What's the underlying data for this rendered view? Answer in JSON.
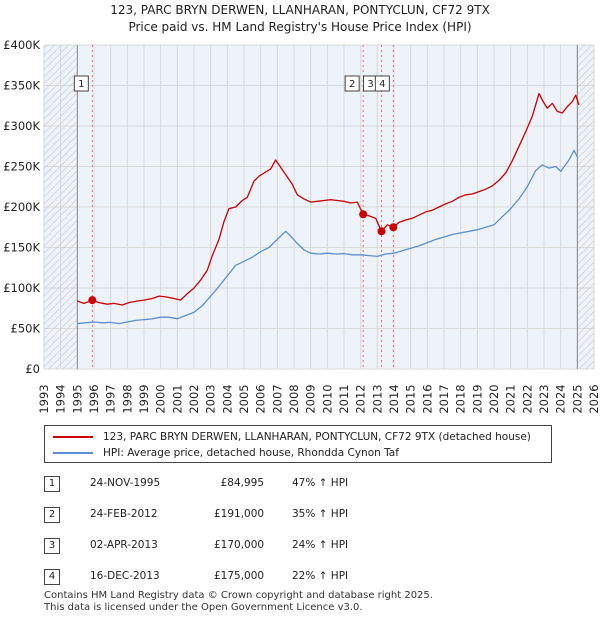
{
  "chart_data": {
    "type": "line",
    "title": "123, PARC BRYN DERWEN, LLANHARAN, PONTYCLUN, CF72 9TX",
    "subtitle": "Price paid vs. HM Land Registry's House Price Index (HPI)",
    "xlim": [
      1993,
      2026
    ],
    "ylim": [
      0,
      400000
    ],
    "x_ticks": [
      "1993",
      "1994",
      "1995",
      "1996",
      "1997",
      "1998",
      "1999",
      "2000",
      "2001",
      "2002",
      "2003",
      "2004",
      "2005",
      "2006",
      "2007",
      "2008",
      "2009",
      "2010",
      "2011",
      "2012",
      "2013",
      "2014",
      "2015",
      "2016",
      "2017",
      "2018",
      "2019",
      "2020",
      "2021",
      "2022",
      "2023",
      "2024",
      "2025",
      "2026"
    ],
    "y_ticks": [
      {
        "value": 0,
        "label": "£0"
      },
      {
        "value": 50000,
        "label": "£50K"
      },
      {
        "value": 100000,
        "label": "£100K"
      },
      {
        "value": 150000,
        "label": "£150K"
      },
      {
        "value": 200000,
        "label": "£200K"
      },
      {
        "value": 250000,
        "label": "£250K"
      },
      {
        "value": 300000,
        "label": "£300K"
      },
      {
        "value": 350000,
        "label": "£350K"
      },
      {
        "value": 400000,
        "label": "£400K"
      }
    ],
    "hatched_ranges": [
      [
        1993,
        1995.0
      ],
      [
        2025.0,
        2026
      ]
    ],
    "series": [
      {
        "name": "123, PARC BRYN DERWEN, LLANHARAN, PONTYCLUN, CF72 9TX (detached house)",
        "color": "#cc0000",
        "points": [
          [
            1995.0,
            84000
          ],
          [
            1995.4,
            81000
          ],
          [
            1995.9,
            84995
          ],
          [
            1996.3,
            82000
          ],
          [
            1996.8,
            80000
          ],
          [
            1997.2,
            81000
          ],
          [
            1997.7,
            79000
          ],
          [
            1998.1,
            82000
          ],
          [
            1998.6,
            84000
          ],
          [
            1999.0,
            85000
          ],
          [
            1999.5,
            87000
          ],
          [
            1999.9,
            90000
          ],
          [
            2000.3,
            89000
          ],
          [
            2000.8,
            87000
          ],
          [
            2001.2,
            85000
          ],
          [
            2001.6,
            93000
          ],
          [
            2002.0,
            100000
          ],
          [
            2002.4,
            110000
          ],
          [
            2002.8,
            122000
          ],
          [
            2003.1,
            140000
          ],
          [
            2003.5,
            160000
          ],
          [
            2003.8,
            182000
          ],
          [
            2004.1,
            198000
          ],
          [
            2004.5,
            200000
          ],
          [
            2004.9,
            208000
          ],
          [
            2005.2,
            212000
          ],
          [
            2005.6,
            232000
          ],
          [
            2005.9,
            238000
          ],
          [
            2006.2,
            242000
          ],
          [
            2006.6,
            247000
          ],
          [
            2006.9,
            258000
          ],
          [
            2007.1,
            252000
          ],
          [
            2007.5,
            240000
          ],
          [
            2007.9,
            228000
          ],
          [
            2008.2,
            215000
          ],
          [
            2008.6,
            210000
          ],
          [
            2009.0,
            206000
          ],
          [
            2009.4,
            207000
          ],
          [
            2009.8,
            208000
          ],
          [
            2010.2,
            209000
          ],
          [
            2010.6,
            208000
          ],
          [
            2011.0,
            207000
          ],
          [
            2011.4,
            205000
          ],
          [
            2011.8,
            206000
          ],
          [
            2012.15,
            191000
          ],
          [
            2012.5,
            189000
          ],
          [
            2012.9,
            186000
          ],
          [
            2013.25,
            170000
          ],
          [
            2013.6,
            178000
          ],
          [
            2013.96,
            175000
          ],
          [
            2014.3,
            181000
          ],
          [
            2014.7,
            184000
          ],
          [
            2015.1,
            186000
          ],
          [
            2015.5,
            190000
          ],
          [
            2015.9,
            194000
          ],
          [
            2016.3,
            196000
          ],
          [
            2016.7,
            200000
          ],
          [
            2017.1,
            204000
          ],
          [
            2017.5,
            207000
          ],
          [
            2017.9,
            212000
          ],
          [
            2018.3,
            215000
          ],
          [
            2018.7,
            216000
          ],
          [
            2019.1,
            219000
          ],
          [
            2019.5,
            222000
          ],
          [
            2019.9,
            226000
          ],
          [
            2020.3,
            233000
          ],
          [
            2020.7,
            242000
          ],
          [
            2021.1,
            257000
          ],
          [
            2021.5,
            275000
          ],
          [
            2021.9,
            293000
          ],
          [
            2022.3,
            312000
          ],
          [
            2022.7,
            340000
          ],
          [
            2022.9,
            332000
          ],
          [
            2023.2,
            322000
          ],
          [
            2023.5,
            328000
          ],
          [
            2023.8,
            318000
          ],
          [
            2024.1,
            316000
          ],
          [
            2024.4,
            324000
          ],
          [
            2024.7,
            330000
          ],
          [
            2024.9,
            338000
          ],
          [
            2025.1,
            326000
          ]
        ]
      },
      {
        "name": "HPI: Average price, detached house, Rhondda Cynon Taf",
        "color": "#5b8fd0",
        "points": [
          [
            1995.0,
            56000
          ],
          [
            1995.5,
            57000
          ],
          [
            1996.0,
            58000
          ],
          [
            1996.5,
            57000
          ],
          [
            1997.0,
            57500
          ],
          [
            1997.5,
            56000
          ],
          [
            1998.0,
            58000
          ],
          [
            1998.5,
            60000
          ],
          [
            1999.0,
            61000
          ],
          [
            1999.5,
            62000
          ],
          [
            2000.0,
            64000
          ],
          [
            2000.5,
            64000
          ],
          [
            2001.0,
            62000
          ],
          [
            2001.5,
            66000
          ],
          [
            2002.0,
            70000
          ],
          [
            2002.5,
            78000
          ],
          [
            2003.0,
            90000
          ],
          [
            2003.5,
            102000
          ],
          [
            2004.0,
            115000
          ],
          [
            2004.5,
            128000
          ],
          [
            2005.0,
            133000
          ],
          [
            2005.5,
            138000
          ],
          [
            2006.0,
            145000
          ],
          [
            2006.5,
            150000
          ],
          [
            2007.0,
            160000
          ],
          [
            2007.5,
            170000
          ],
          [
            2007.8,
            164000
          ],
          [
            2008.2,
            155000
          ],
          [
            2008.6,
            147000
          ],
          [
            2009.0,
            143000
          ],
          [
            2009.5,
            142000
          ],
          [
            2010.0,
            143000
          ],
          [
            2010.5,
            142000
          ],
          [
            2011.0,
            142500
          ],
          [
            2011.5,
            141000
          ],
          [
            2012.0,
            141000
          ],
          [
            2012.5,
            140000
          ],
          [
            2013.0,
            139000
          ],
          [
            2013.5,
            142000
          ],
          [
            2014.0,
            143000
          ],
          [
            2014.5,
            146000
          ],
          [
            2015.0,
            149000
          ],
          [
            2015.5,
            152000
          ],
          [
            2016.0,
            156000
          ],
          [
            2016.5,
            160000
          ],
          [
            2017.0,
            163000
          ],
          [
            2017.5,
            166000
          ],
          [
            2018.0,
            168000
          ],
          [
            2018.5,
            170000
          ],
          [
            2019.0,
            172000
          ],
          [
            2019.5,
            175000
          ],
          [
            2020.0,
            178000
          ],
          [
            2020.5,
            188000
          ],
          [
            2021.0,
            198000
          ],
          [
            2021.5,
            210000
          ],
          [
            2022.0,
            225000
          ],
          [
            2022.5,
            245000
          ],
          [
            2022.9,
            252000
          ],
          [
            2023.3,
            248000
          ],
          [
            2023.7,
            250000
          ],
          [
            2024.0,
            244000
          ],
          [
            2024.5,
            258000
          ],
          [
            2024.8,
            270000
          ],
          [
            2025.0,
            262000
          ]
        ]
      }
    ],
    "sales": [
      {
        "n": "1",
        "x": 1995.9,
        "y": 84995
      },
      {
        "n": "2",
        "x": 2012.15,
        "y": 191000
      },
      {
        "n": "3",
        "x": 2013.25,
        "y": 170000
      },
      {
        "n": "4",
        "x": 2013.96,
        "y": 175000
      }
    ]
  },
  "legend": {
    "red_label": "123, PARC BRYN DERWEN, LLANHARAN, PONTYCLUN, CF72 9TX (detached house)",
    "blue_label": "HPI: Average price, detached house, Rhondda Cynon Taf"
  },
  "table": [
    {
      "n": "1",
      "date": "24-NOV-1995",
      "price": "£84,995",
      "hpi": "47% ↑ HPI"
    },
    {
      "n": "2",
      "date": "24-FEB-2012",
      "price": "£191,000",
      "hpi": "35% ↑ HPI"
    },
    {
      "n": "3",
      "date": "02-APR-2013",
      "price": "£170,000",
      "hpi": "24% ↑ HPI"
    },
    {
      "n": "4",
      "date": "16-DEC-2013",
      "price": "£175,000",
      "hpi": "22% ↑ HPI"
    }
  ],
  "footer": {
    "line1": "Contains HM Land Registry data © Crown copyright and database right 2025.",
    "line2": "This data is licensed under the Open Government Licence v3.0."
  },
  "colors": {
    "red": "#cc0000",
    "blue": "#5b8fd0",
    "grid": "#d9d9d9",
    "plot_bg": "#eef2f9"
  }
}
